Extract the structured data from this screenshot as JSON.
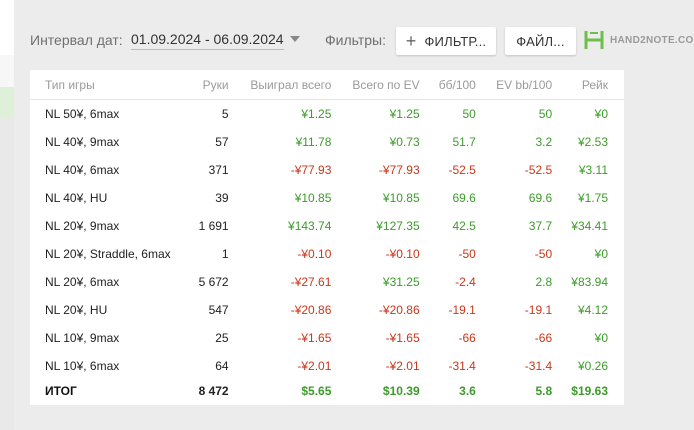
{
  "toolbar": {
    "interval_label": "Интервал дат:",
    "date_range": "01.09.2024 - 06.09.2024",
    "filters_label": "Фильтры:",
    "filter_button": "ФИЛЬТР...",
    "file_button": "ФАЙЛ...",
    "logo_text": "HAND2NOTE.COM"
  },
  "table": {
    "columns": [
      "Тип игры",
      "Руки",
      "Выиграл всего",
      "Всего по EV",
      "бб/100",
      "EV bb/100",
      "Рейк"
    ],
    "rows": [
      {
        "game": "NL 50¥, 6max",
        "hands": "5",
        "won": "¥1.25",
        "ev": "¥1.25",
        "bb": "50",
        "evbb": "50",
        "rake": "¥0",
        "s": [
          "pos",
          "pos",
          "pos",
          "pos",
          "pos"
        ]
      },
      {
        "game": "NL 40¥, 9max",
        "hands": "57",
        "won": "¥11.78",
        "ev": "¥0.73",
        "bb": "51.7",
        "evbb": "3.2",
        "rake": "¥2.53",
        "s": [
          "pos",
          "pos",
          "pos",
          "pos",
          "pos"
        ]
      },
      {
        "game": "NL 40¥, 6max",
        "hands": "371",
        "won": "-¥77.93",
        "ev": "-¥77.93",
        "bb": "-52.5",
        "evbb": "-52.5",
        "rake": "¥3.11",
        "s": [
          "neg",
          "neg",
          "neg",
          "neg",
          "pos"
        ]
      },
      {
        "game": "NL 40¥, HU",
        "hands": "39",
        "won": "¥10.85",
        "ev": "¥10.85",
        "bb": "69.6",
        "evbb": "69.6",
        "rake": "¥1.75",
        "s": [
          "pos",
          "pos",
          "pos",
          "pos",
          "pos"
        ]
      },
      {
        "game": "NL 20¥, 9max",
        "hands": "1 691",
        "won": "¥143.74",
        "ev": "¥127.35",
        "bb": "42.5",
        "evbb": "37.7",
        "rake": "¥34.41",
        "s": [
          "pos",
          "pos",
          "pos",
          "pos",
          "pos"
        ]
      },
      {
        "game": "NL 20¥, Straddle, 6max",
        "hands": "1",
        "won": "-¥0.10",
        "ev": "-¥0.10",
        "bb": "-50",
        "evbb": "-50",
        "rake": "¥0",
        "s": [
          "neg",
          "neg",
          "neg",
          "neg",
          "pos"
        ]
      },
      {
        "game": "NL 20¥, 6max",
        "hands": "5 672",
        "won": "-¥27.61",
        "ev": "¥31.25",
        "bb": "-2.4",
        "evbb": "2.8",
        "rake": "¥83.94",
        "s": [
          "neg",
          "pos",
          "neg",
          "pos",
          "pos"
        ]
      },
      {
        "game": "NL 20¥, HU",
        "hands": "547",
        "won": "-¥20.86",
        "ev": "-¥20.86",
        "bb": "-19.1",
        "evbb": "-19.1",
        "rake": "¥4.12",
        "s": [
          "neg",
          "neg",
          "neg",
          "neg",
          "pos"
        ]
      },
      {
        "game": "NL 10¥, 9max",
        "hands": "25",
        "won": "-¥1.65",
        "ev": "-¥1.65",
        "bb": "-66",
        "evbb": "-66",
        "rake": "¥0",
        "s": [
          "neg",
          "neg",
          "neg",
          "neg",
          "pos"
        ]
      },
      {
        "game": "NL 10¥, 6max",
        "hands": "64",
        "won": "-¥2.01",
        "ev": "-¥2.01",
        "bb": "-31.4",
        "evbb": "-31.4",
        "rake": "¥0.26",
        "s": [
          "neg",
          "neg",
          "neg",
          "neg",
          "pos"
        ]
      }
    ],
    "total": {
      "game": "ИТОГ",
      "hands": "8 472",
      "won": "$5.65",
      "ev": "$10.39",
      "bb": "3.6",
      "evbb": "5.8",
      "rake": "$19.63"
    }
  },
  "colors": {
    "positive": "#3c9b2a",
    "negative": "#c8371a",
    "logo": "#6cc04a"
  }
}
